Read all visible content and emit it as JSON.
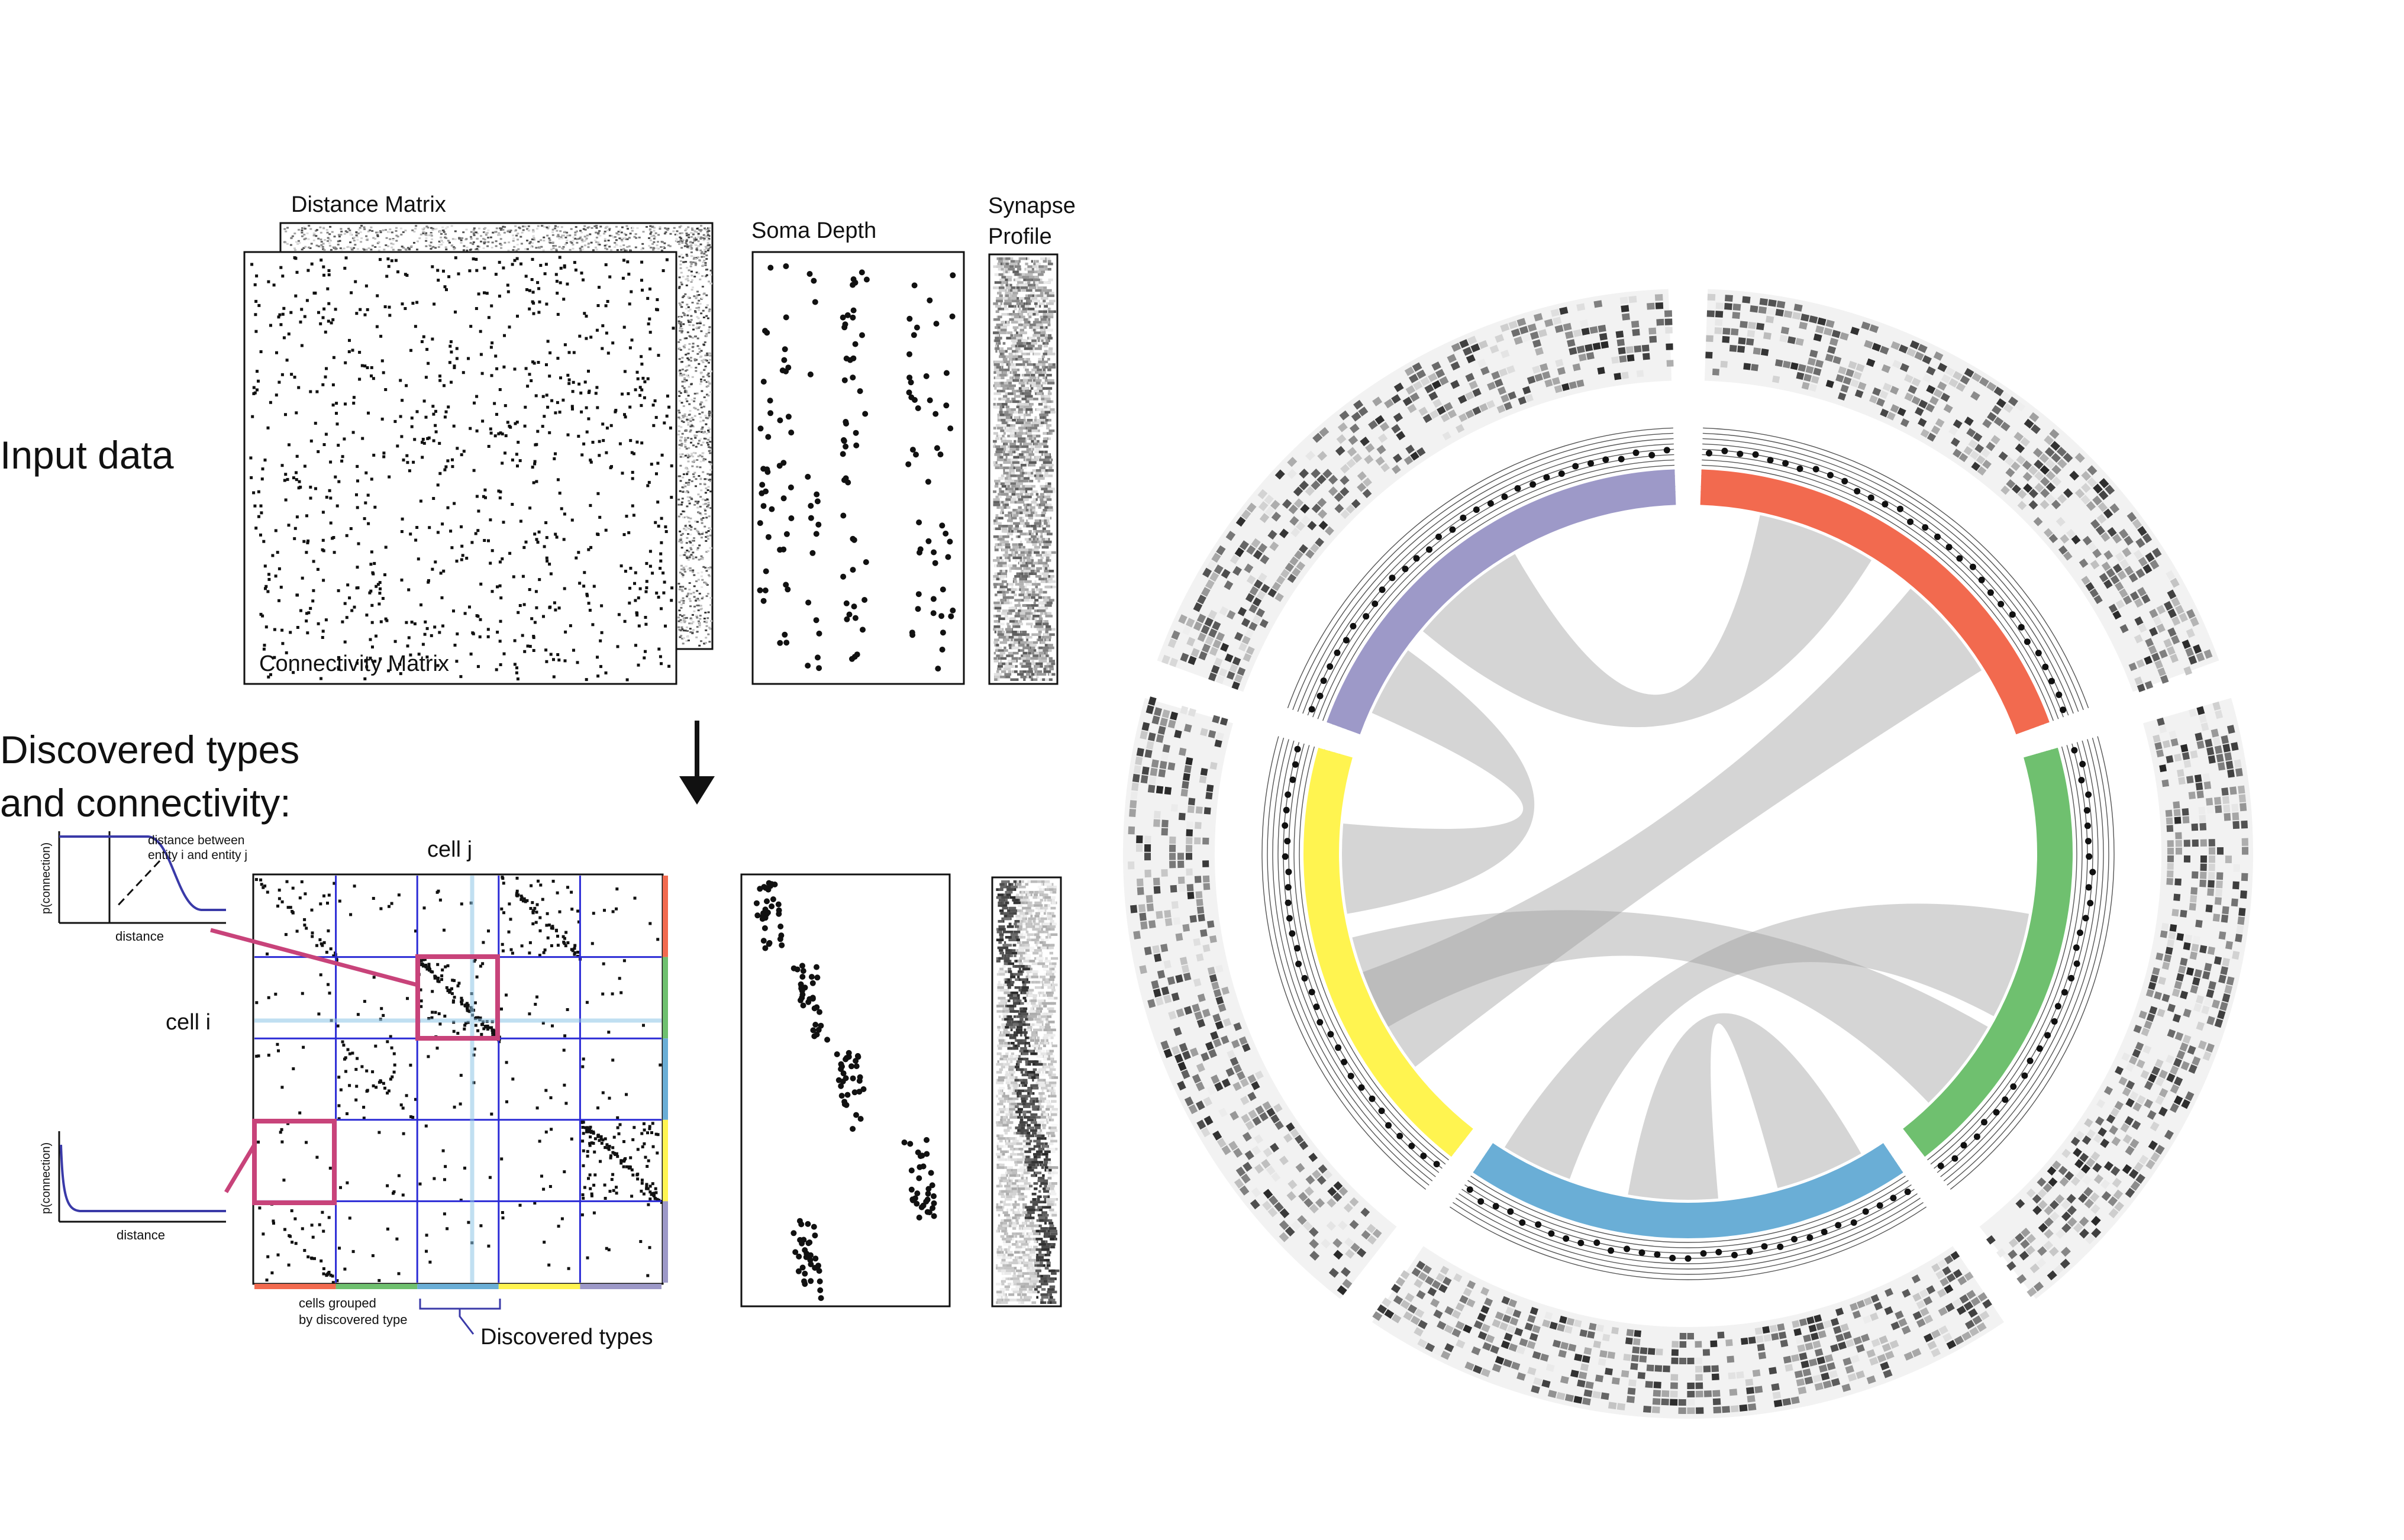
{
  "labels": {
    "input_data": "Input data",
    "distance_matrix": "Distance Matrix",
    "connectivity_matrix": "Connectivity Matrix",
    "soma_depth": "Soma Depth",
    "synapse_line1": "Synapse",
    "synapse_line2": "Profile",
    "discovered_line1": "Discovered types",
    "discovered_line2": "and connectivity:",
    "cell_j": "cell j",
    "cell_i": "cell i",
    "p_connection": "p(connection)",
    "distance": "distance",
    "distance_between_line1": "distance between",
    "distance_between_line2": "entity i and entity j",
    "cells_grouped_line1": "cells grouped",
    "cells_grouped_line2": "by discovered type",
    "discovered_types": "Discovered types"
  },
  "colors": {
    "type_1": "#f26a4f",
    "type_2": "#6fc06f",
    "type_3": "#6aaed6",
    "type_4": "#fff450",
    "type_5": "#9d99c8",
    "grid_blue": "#2b2bd6",
    "highlight_pink": "#c8437a",
    "link_gray": "#9a9a9a"
  },
  "types": [
    {
      "color": "#f26a4f"
    },
    {
      "color": "#6fc06f"
    },
    {
      "color": "#6aaed6"
    },
    {
      "color": "#fff450"
    },
    {
      "color": "#9d99c8"
    }
  ]
}
